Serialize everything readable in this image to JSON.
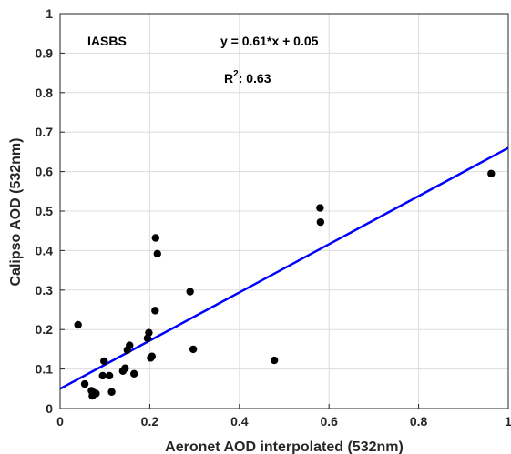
{
  "chart_data": {
    "type": "scatter",
    "xlabel": "Aeronet AOD interpolated (532nm)",
    "ylabel": "Calipso AOD (532nm)",
    "xlim": [
      0,
      1
    ],
    "ylim": [
      0,
      1
    ],
    "x_ticks": [
      0,
      0.2,
      0.4,
      0.6,
      0.8,
      1
    ],
    "y_ticks": [
      0,
      0.1,
      0.2,
      0.3,
      0.4,
      0.5,
      0.6,
      0.7,
      0.8,
      0.9,
      1
    ],
    "x_tick_labels": [
      "0",
      "0.2",
      "0.4",
      "0.6",
      "0.8",
      "1"
    ],
    "y_tick_labels": [
      "0",
      "0.1",
      "0.2",
      "0.3",
      "0.4",
      "0.5",
      "0.6",
      "0.7",
      "0.8",
      "0.9",
      "1"
    ],
    "grid": true,
    "annotations": {
      "station": "IASBS",
      "equation": "y = 0.61*x + 0.05",
      "r2_prefix": "R",
      "r2_sup": "2",
      "r2_value": ": 0.63"
    },
    "points": [
      {
        "x": 0.04,
        "y": 0.212
      },
      {
        "x": 0.055,
        "y": 0.062
      },
      {
        "x": 0.07,
        "y": 0.045
      },
      {
        "x": 0.072,
        "y": 0.032
      },
      {
        "x": 0.075,
        "y": 0.04
      },
      {
        "x": 0.08,
        "y": 0.038
      },
      {
        "x": 0.095,
        "y": 0.083
      },
      {
        "x": 0.098,
        "y": 0.12
      },
      {
        "x": 0.11,
        "y": 0.083
      },
      {
        "x": 0.115,
        "y": 0.042
      },
      {
        "x": 0.14,
        "y": 0.095
      },
      {
        "x": 0.145,
        "y": 0.102
      },
      {
        "x": 0.15,
        "y": 0.148
      },
      {
        "x": 0.155,
        "y": 0.16
      },
      {
        "x": 0.165,
        "y": 0.088
      },
      {
        "x": 0.195,
        "y": 0.178
      },
      {
        "x": 0.198,
        "y": 0.192
      },
      {
        "x": 0.202,
        "y": 0.128
      },
      {
        "x": 0.205,
        "y": 0.132
      },
      {
        "x": 0.212,
        "y": 0.248
      },
      {
        "x": 0.213,
        "y": 0.432
      },
      {
        "x": 0.217,
        "y": 0.392
      },
      {
        "x": 0.29,
        "y": 0.296
      },
      {
        "x": 0.297,
        "y": 0.15
      },
      {
        "x": 0.478,
        "y": 0.122
      },
      {
        "x": 0.58,
        "y": 0.508
      },
      {
        "x": 0.581,
        "y": 0.472
      },
      {
        "x": 0.962,
        "y": 0.595
      }
    ],
    "fit_line": {
      "slope": 0.61,
      "intercept": 0.05,
      "x_start": 0,
      "x_end": 1
    }
  },
  "colors": {
    "fit_line": "#0000ff",
    "points": "#000000",
    "grid": "#dcdcdc",
    "axes": "#262626"
  }
}
